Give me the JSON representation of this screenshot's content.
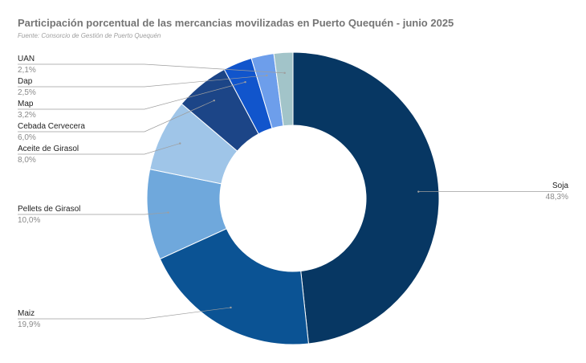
{
  "title": "Participación porcentual de las mercancias movilizadas en Puerto Quequén - junio 2025",
  "subtitle": "Fuente: Consorcio de Gestión de Puerto Quequén",
  "chart_data": {
    "type": "pie",
    "title": "Participación porcentual de las mercancias movilizadas en Puerto Quequén - junio 2025",
    "subtitle": "Fuente: Consorcio de Gestión de Puerto Quequén",
    "donut": true,
    "slices": [
      {
        "name": "Soja",
        "value": 48.3,
        "label": "48,3%",
        "color": "#073763"
      },
      {
        "name": "Maiz",
        "value": 19.9,
        "label": "19,9%",
        "color": "#0b5394"
      },
      {
        "name": "Pellets de Girasol",
        "value": 10.0,
        "label": "10,0%",
        "color": "#6fa8dc"
      },
      {
        "name": "Aceite de Girasol",
        "value": 8.0,
        "label": "8,0%",
        "color": "#9fc5e8"
      },
      {
        "name": "Cebada Cervecera",
        "value": 6.0,
        "label": "6,0%",
        "color": "#1c4587"
      },
      {
        "name": "Map",
        "value": 3.2,
        "label": "3,2%",
        "color": "#1155cc"
      },
      {
        "name": "Dap",
        "value": 2.5,
        "label": "2,5%",
        "color": "#6d9eeb"
      },
      {
        "name": "UAN",
        "value": 2.1,
        "label": "2,1%",
        "color": "#a2c4c9"
      }
    ],
    "legend": "none"
  }
}
